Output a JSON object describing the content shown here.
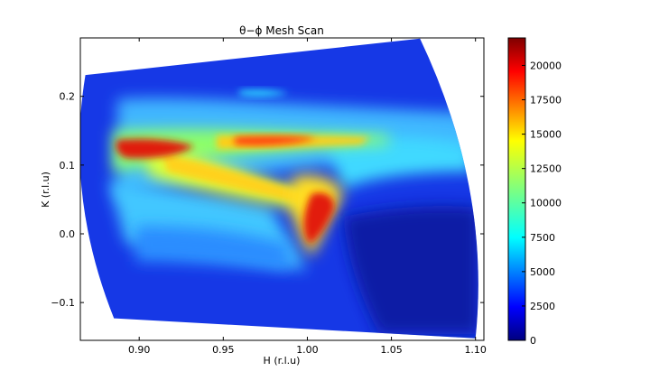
{
  "chart_data": {
    "type": "heatmap",
    "title": "θ−ϕ Mesh Scan",
    "xlabel": "H (r.l.u)",
    "ylabel": "K (r.l.u)",
    "xlim": [
      0.865,
      1.105
    ],
    "ylim": [
      -0.155,
      0.285
    ],
    "xticks": [
      "0.90",
      "0.95",
      "1.00",
      "1.05",
      "1.10"
    ],
    "xtick_values": [
      0.9,
      0.95,
      1.0,
      1.05,
      1.1
    ],
    "yticks": [
      "−0.1",
      "0.0",
      "0.1",
      "0.2"
    ],
    "ytick_values": [
      -0.1,
      0.0,
      0.1,
      0.2
    ],
    "colorbar": {
      "min": 0,
      "max": 22000,
      "ticks": [
        "0",
        "2500",
        "5000",
        "7500",
        "10000",
        "12500",
        "15000",
        "17500",
        "20000"
      ],
      "tick_values": [
        0,
        2500,
        5000,
        7500,
        10000,
        12500,
        15000,
        17500,
        20000
      ],
      "colormap": "jet"
    },
    "scan_region_corners_hk": {
      "top_left": [
        0.868,
        0.231
      ],
      "top_right": [
        1.067,
        0.284
      ],
      "bottom_right": [
        1.1,
        -0.152
      ],
      "bottom_left": [
        0.885,
        -0.123
      ]
    },
    "features": [
      {
        "label": "hot band",
        "h_start": 0.885,
        "k_start": 0.125,
        "h_end": 1.03,
        "k_end": 0.14,
        "peak_intensity": 21000
      },
      {
        "label": "diagonal ridge",
        "h_start": 0.92,
        "k_start": 0.1,
        "h_end": 1.02,
        "k_end": 0.04,
        "peak_intensity": 17000
      },
      {
        "label": "hot spot",
        "h": 1.005,
        "k": 0.02,
        "peak_intensity": 21000
      },
      {
        "label": "weak streak",
        "h_start": 0.95,
        "k_start": 0.2,
        "h_end": 1.0,
        "k_end": 0.21,
        "peak_intensity": 8000
      }
    ]
  }
}
